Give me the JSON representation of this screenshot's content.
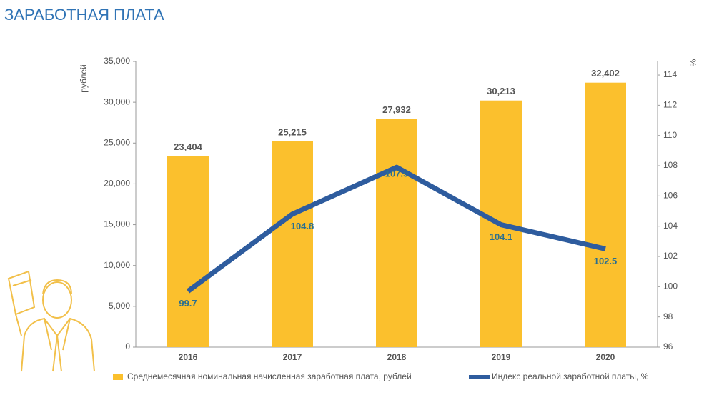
{
  "chart_data": {
    "type": "bar_line",
    "title": "ЗАРАБОТНАЯ ПЛАТА",
    "ylabel": "рублей",
    "y2label": "%",
    "categories": [
      "2016",
      "2017",
      "2018",
      "2019",
      "2020"
    ],
    "series": [
      {
        "name": "Среднемесячная номинальная начисленная заработная плата, рублей",
        "type": "bar",
        "color": "#fbc02d",
        "values": [
          23404,
          25215,
          27932,
          30213,
          32402
        ],
        "value_labels": [
          "23,404",
          "25,215",
          "27,932",
          "30,213",
          "32,402"
        ]
      },
      {
        "name": "Индекс реальной заработной платы, %",
        "type": "line",
        "color": "#2e5c9e",
        "axis": "y2",
        "values": [
          99.7,
          104.8,
          107.9,
          104.1,
          102.5
        ]
      }
    ],
    "ylim": [
      0,
      35000
    ],
    "yticks": [
      0,
      {
        "value": 5000,
        "label": "5,000"
      },
      {
        "value": 10000,
        "label": "10,000"
      },
      {
        "value": 15000,
        "label": "15,000"
      },
      {
        "value": 20000,
        "label": "20,000"
      },
      {
        "value": 25000,
        "label": "25,000"
      },
      {
        "value": 30000,
        "label": "30,000"
      },
      {
        "value": 35000,
        "label": "35,000"
      }
    ],
    "y2lim": [
      96,
      114.9
    ],
    "y2ticks": [
      96,
      98,
      100,
      102,
      104,
      106,
      108,
      110,
      112,
      114
    ],
    "legend": "bottom"
  }
}
